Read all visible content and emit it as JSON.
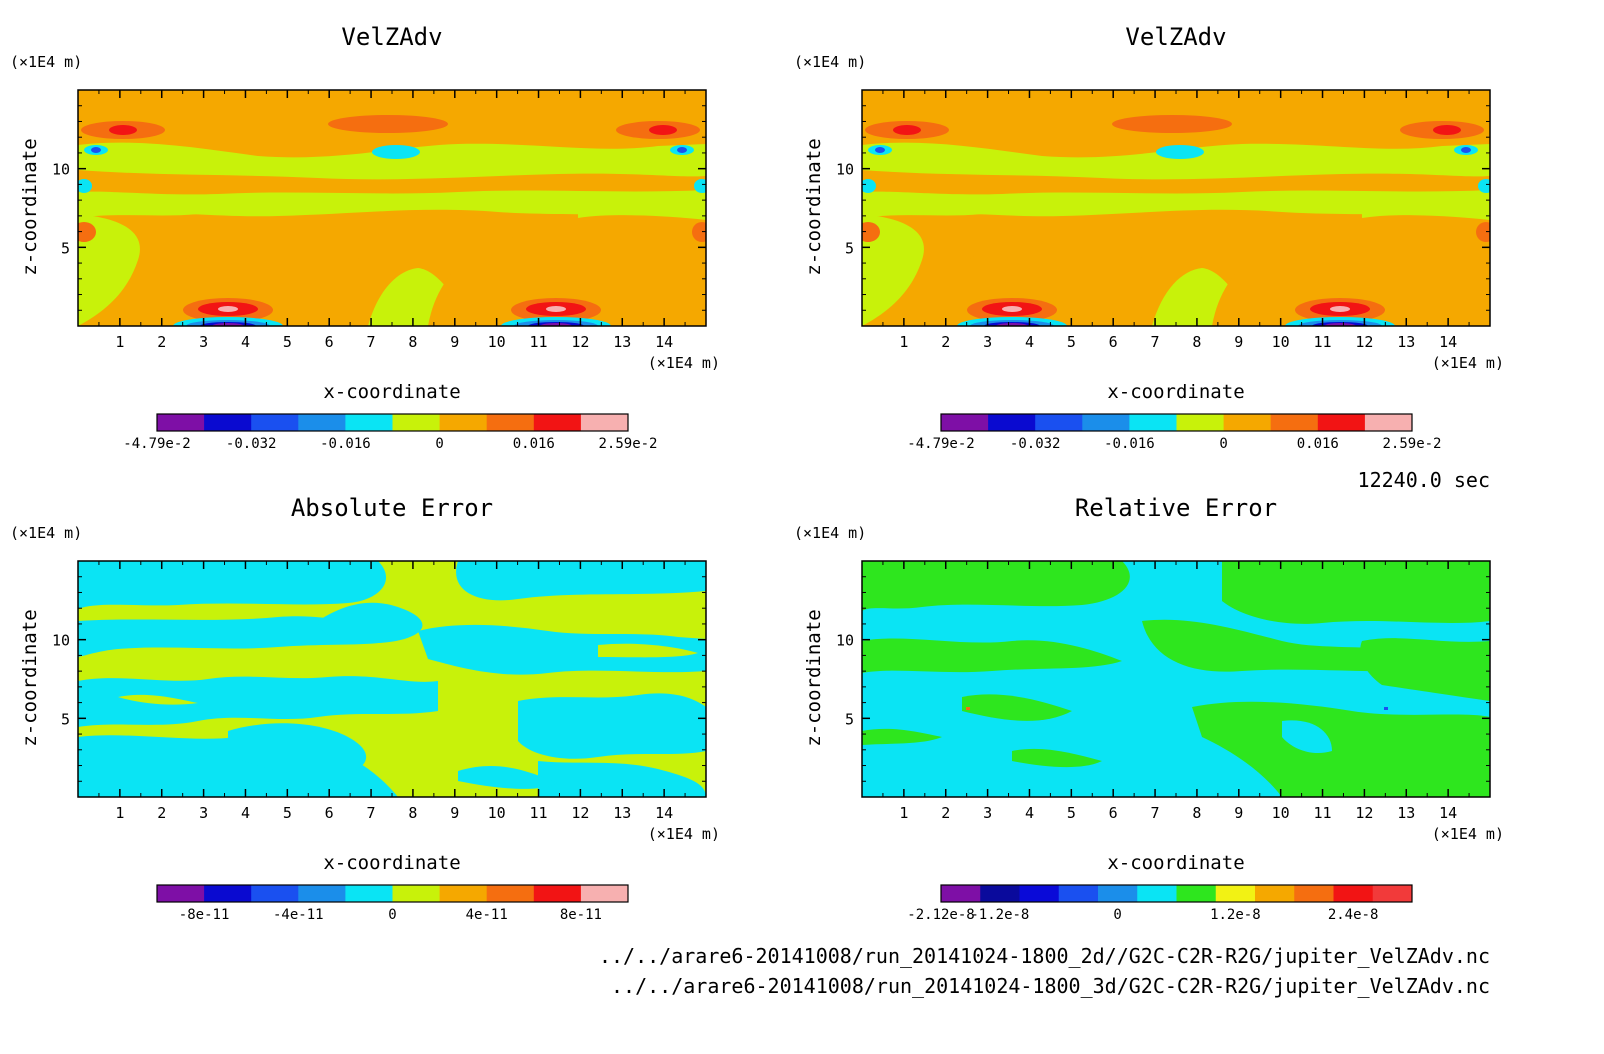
{
  "timestamp": "12240.0 sec",
  "footer": {
    "line1": "../../arare6-20141008/run_20141024-1800_2d//G2C-C2R-R2G/jupiter_VelZAdv.nc",
    "line2": "../../arare6-20141008/run_20141024-1800_3d/G2C-C2R-R2G/jupiter_VelZAdv.nc"
  },
  "chart_data": [
    {
      "type": "heatmap",
      "title": "VelZAdv",
      "xlabel": "x-coordinate",
      "ylabel": "z-coordinate",
      "x_unit": "(×1E4 m)",
      "y_unit": "(×1E4 m)",
      "xlim": [
        0,
        15
      ],
      "ylim": [
        0,
        15
      ],
      "x_ticks": [
        "1",
        "2",
        "3",
        "4",
        "5",
        "6",
        "7",
        "8",
        "9",
        "10",
        "11",
        "12",
        "13",
        "14"
      ],
      "y_ticks": [
        "5",
        "10"
      ],
      "colorbar": {
        "colors": [
          "#7e0fa6",
          "#0a0ad0",
          "#1a50f0",
          "#1b8eea",
          "#0ae4f4",
          "#c8f20a",
          "#f5a800",
          "#f56e10",
          "#f21414",
          "#f7b0b0"
        ],
        "labels": [
          "-4.79e-2",
          "-0.032",
          "-0.016",
          "0",
          "0.016",
          "2.59e-2"
        ],
        "label_positions": [
          0,
          2,
          4,
          6,
          8,
          10
        ],
        "range": [
          -0.0479,
          0.0259
        ]
      }
    },
    {
      "type": "heatmap",
      "title": "VelZAdv",
      "xlabel": "x-coordinate",
      "ylabel": "z-coordinate",
      "x_unit": "(×1E4 m)",
      "y_unit": "(×1E4 m)",
      "xlim": [
        0,
        15
      ],
      "ylim": [
        0,
        15
      ],
      "x_ticks": [
        "1",
        "2",
        "3",
        "4",
        "5",
        "6",
        "7",
        "8",
        "9",
        "10",
        "11",
        "12",
        "13",
        "14"
      ],
      "y_ticks": [
        "5",
        "10"
      ],
      "colorbar": {
        "colors": [
          "#7e0fa6",
          "#0a0ad0",
          "#1a50f0",
          "#1b8eea",
          "#0ae4f4",
          "#c8f20a",
          "#f5a800",
          "#f56e10",
          "#f21414",
          "#f7b0b0"
        ],
        "labels": [
          "-4.79e-2",
          "-0.032",
          "-0.016",
          "0",
          "0.016",
          "2.59e-2"
        ],
        "label_positions": [
          0,
          2,
          4,
          6,
          8,
          10
        ],
        "range": [
          -0.0479,
          0.0259
        ]
      }
    },
    {
      "type": "heatmap",
      "title": "Absolute Error",
      "xlabel": "x-coordinate",
      "ylabel": "z-coordinate",
      "x_unit": "(×1E4 m)",
      "y_unit": "(×1E4 m)",
      "xlim": [
        0,
        15
      ],
      "ylim": [
        0,
        15
      ],
      "x_ticks": [
        "1",
        "2",
        "3",
        "4",
        "5",
        "6",
        "7",
        "8",
        "9",
        "10",
        "11",
        "12",
        "13",
        "14"
      ],
      "y_ticks": [
        "5",
        "10"
      ],
      "colorbar": {
        "colors": [
          "#7e0fa6",
          "#0a0ad0",
          "#1a50f0",
          "#1b8eea",
          "#0ae4f4",
          "#c8f20a",
          "#f5a800",
          "#f56e10",
          "#f21414",
          "#f7b0b0"
        ],
        "labels": [
          "-8e-11",
          "-4e-11",
          "0",
          "4e-11",
          "8e-11"
        ],
        "label_positions": [
          1,
          3,
          5,
          7,
          9
        ],
        "range": [
          -1e-10,
          1e-10
        ]
      }
    },
    {
      "type": "heatmap",
      "title": "Relative Error",
      "xlabel": "x-coordinate",
      "ylabel": "z-coordinate",
      "x_unit": "(×1E4 m)",
      "y_unit": "(×1E4 m)",
      "xlim": [
        0,
        15
      ],
      "ylim": [
        0,
        15
      ],
      "x_ticks": [
        "1",
        "2",
        "3",
        "4",
        "5",
        "6",
        "7",
        "8",
        "9",
        "10",
        "11",
        "12",
        "13",
        "14"
      ],
      "y_ticks": [
        "5",
        "10"
      ],
      "colorbar": {
        "colors": [
          "#7e0fa6",
          "#0a0a9c",
          "#0a0ad8",
          "#1a50f0",
          "#1b8eea",
          "#0ae4f4",
          "#2ee61e",
          "#f2f214",
          "#f5a800",
          "#f56e10",
          "#f21414",
          "#f23a3a"
        ],
        "labels": [
          "-2.12e-8",
          "-1.2e-8",
          "0",
          "1.2e-8",
          "2.4e-8"
        ],
        "label_positions": [
          0,
          1.5,
          4.5,
          7.5,
          10.5
        ],
        "range": [
          -2.12e-08,
          2.8e-08
        ]
      }
    }
  ]
}
